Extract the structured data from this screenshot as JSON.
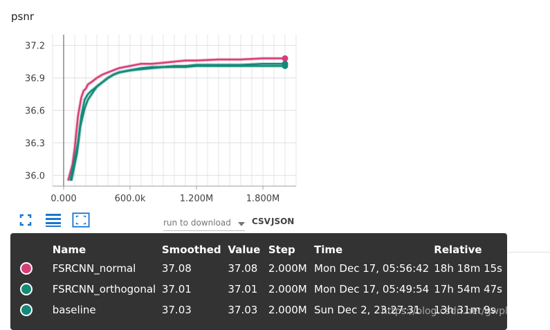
{
  "title": "psnr",
  "chart_data": {
    "type": "line",
    "xlabel": "",
    "ylabel": "",
    "xlim": [
      -0.1,
      2.1
    ],
    "ylim": [
      35.9,
      37.3
    ],
    "x_ticks": [
      0,
      0.6,
      1.2,
      1.8
    ],
    "x_tick_labels": [
      "0.000",
      "600.0k",
      "1.200M",
      "1.800M"
    ],
    "y_ticks": [
      36.0,
      36.3,
      36.6,
      36.9,
      37.2
    ],
    "y_tick_labels": [
      "36.0",
      "36.3",
      "36.6",
      "36.9",
      "37.2"
    ],
    "x_unit": "M steps",
    "grid": true,
    "series": [
      {
        "name": "FSRCNN_normal",
        "color": "#d63e76",
        "x": [
          0.04,
          0.08,
          0.1,
          0.13,
          0.16,
          0.18,
          0.2,
          0.22,
          0.25,
          0.3,
          0.35,
          0.4,
          0.45,
          0.5,
          0.55,
          0.6,
          0.7,
          0.8,
          0.9,
          1.0,
          1.1,
          1.2,
          1.4,
          1.6,
          1.8,
          2.0
        ],
        "y": [
          35.95,
          36.1,
          36.25,
          36.55,
          36.72,
          36.78,
          36.8,
          36.84,
          36.86,
          36.9,
          36.93,
          36.95,
          36.97,
          36.99,
          37.0,
          37.01,
          37.03,
          37.03,
          37.04,
          37.05,
          37.06,
          37.06,
          37.07,
          37.07,
          37.08,
          37.08
        ]
      },
      {
        "name": "FSRCNN_orthogonal",
        "color": "#138d75",
        "x": [
          0.06,
          0.1,
          0.13,
          0.16,
          0.19,
          0.22,
          0.25,
          0.3,
          0.35,
          0.4,
          0.45,
          0.5,
          0.6,
          0.7,
          0.8,
          0.9,
          1.0,
          1.1,
          1.2,
          1.4,
          1.6,
          1.8,
          2.0
        ],
        "y": [
          35.95,
          36.15,
          36.3,
          36.55,
          36.7,
          36.75,
          36.78,
          36.82,
          36.86,
          36.9,
          36.93,
          36.95,
          36.97,
          36.98,
          36.99,
          37.0,
          37.0,
          37.0,
          37.01,
          37.01,
          37.01,
          37.01,
          37.01
        ]
      },
      {
        "name": "baseline",
        "color": "#12897a",
        "x": [
          0.07,
          0.12,
          0.15,
          0.19,
          0.22,
          0.26,
          0.3,
          0.35,
          0.4,
          0.45,
          0.5,
          0.6,
          0.7,
          0.8,
          0.9,
          1.0,
          1.1,
          1.2,
          1.4,
          1.6,
          1.8,
          2.0
        ],
        "y": [
          35.95,
          36.2,
          36.45,
          36.62,
          36.7,
          36.76,
          36.82,
          36.86,
          36.9,
          36.93,
          36.95,
          36.97,
          36.99,
          37.0,
          37.0,
          37.01,
          37.01,
          37.02,
          37.02,
          37.02,
          37.03,
          37.03
        ]
      }
    ]
  },
  "toolbar": {
    "fit_icon": "fullscreen-icon",
    "log_icon": "lines-icon",
    "zoom_icon": "fit-domain-icon",
    "download_placeholder": "run to download",
    "csv_label": "CSV",
    "json_label": "JSON"
  },
  "tooltip": {
    "headers": {
      "name": "Name",
      "smoothed": "Smoothed",
      "value": "Value",
      "step": "Step",
      "time": "Time",
      "relative": "Relative"
    },
    "rows": [
      {
        "color": "#d63e76",
        "name": "FSRCNN_normal",
        "smoothed": "37.08",
        "value": "37.08",
        "step": "2.000M",
        "time": "Mon Dec 17, 05:56:42",
        "relative": "18h 18m 15s"
      },
      {
        "color": "#138d75",
        "name": "FSRCNN_orthogonal",
        "smoothed": "37.01",
        "value": "37.01",
        "step": "2.000M",
        "time": "Mon Dec 17, 05:49:54",
        "relative": "17h 54m 47s"
      },
      {
        "color": "#12897a",
        "name": "baseline",
        "smoothed": "37.03",
        "value": "37.03",
        "step": "2.000M",
        "time": "Sun Dec 2, 23:27:31",
        "relative": "13h 31m 9s"
      }
    ]
  },
  "watermark": "https://blog.csdn.net/gwplovekimi"
}
